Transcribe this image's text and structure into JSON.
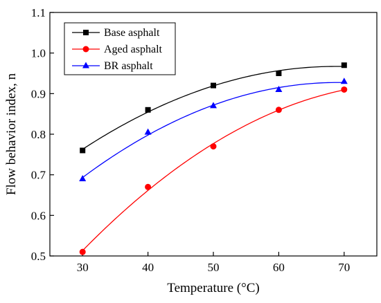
{
  "chart_data": {
    "type": "line",
    "xlabel": "Temperature (°C)",
    "ylabel": "Flow behavior index, n",
    "xlim": [
      25,
      75
    ],
    "ylim": [
      0.5,
      1.1
    ],
    "x_ticks": [
      30,
      40,
      50,
      60,
      70
    ],
    "y_ticks": [
      0.5,
      0.6,
      0.7,
      0.8,
      0.9,
      1.0,
      1.1
    ],
    "x_tick_labels": [
      "30",
      "40",
      "50",
      "60",
      "70"
    ],
    "y_tick_labels": [
      "0.5",
      "0.6",
      "0.7",
      "0.8",
      "0.9",
      "1.0",
      "1.1"
    ],
    "x": [
      30,
      40,
      50,
      60,
      70
    ],
    "grid": false,
    "legend_position": "top-left",
    "series": [
      {
        "name": "Base asphalt",
        "values": [
          0.76,
          0.86,
          0.92,
          0.95,
          0.97
        ],
        "color": "#000000",
        "marker": "square"
      },
      {
        "name": "Aged asphalt",
        "values": [
          0.51,
          0.67,
          0.77,
          0.86,
          0.91
        ],
        "color": "#ff0000",
        "marker": "circle"
      },
      {
        "name": "BR asphalt",
        "values": [
          0.69,
          0.805,
          0.87,
          0.91,
          0.93
        ],
        "color": "#0000ff",
        "marker": "triangle"
      }
    ]
  }
}
